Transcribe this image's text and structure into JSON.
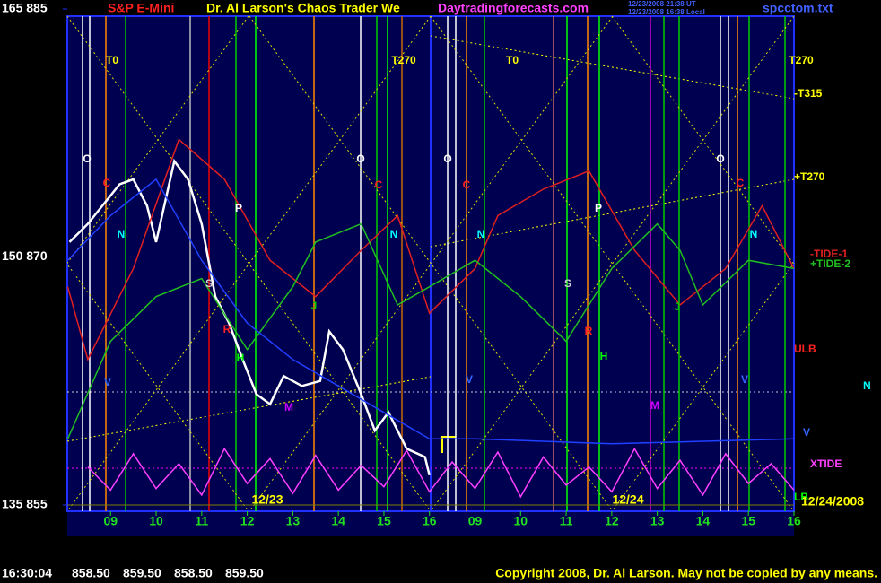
{
  "header": {
    "symbol": "S&P E-Mini",
    "title": "Dr. Al Larson's Chaos Trader We",
    "site": "Daytradingforecasts.com",
    "time_ut": "12/23/2008 21:38 UT",
    "time_local": "12/23/2008 16:38 Local",
    "file": "spcctom.txt"
  },
  "chart_data": {
    "type": "line",
    "xlim": [
      8.05,
      24
    ],
    "ylim": [
      855,
      885
    ],
    "yticks": [
      {
        "value": 885,
        "label": "165 885"
      },
      {
        "value": 870,
        "label": "150 870"
      },
      {
        "value": 855,
        "label": "135 855"
      }
    ],
    "xticks": [
      {
        "value": 9,
        "label": "09"
      },
      10,
      11,
      12,
      13,
      14,
      15,
      16,
      {
        "value": 17,
        "label": "09"
      },
      {
        "value": 18,
        "label": "10"
      },
      {
        "value": 19,
        "label": "11"
      },
      {
        "value": 20,
        "label": "12"
      },
      {
        "value": 21,
        "label": "13"
      },
      {
        "value": 22,
        "label": "14"
      },
      {
        "value": 23,
        "label": "15"
      },
      {
        "value": 24,
        "label": "16"
      }
    ],
    "series": [
      {
        "color": "#ffffff",
        "x": [
          8.1,
          8.5,
          9.2,
          9.5,
          9.8,
          10.0,
          10.4,
          10.7,
          11.0,
          11.3,
          11.6,
          11.9,
          12.2,
          12.5,
          12.8,
          13.2,
          13.6,
          13.8,
          14.1,
          14.5,
          14.8,
          15.1,
          15.5,
          15.9,
          16.0
        ],
        "values": [
          870.9,
          872.0,
          874.4,
          874.7,
          873.1,
          870.9,
          875.8,
          874.7,
          872.0,
          867.6,
          866.0,
          863.8,
          861.7,
          861.1,
          862.8,
          862.2,
          862.5,
          865.5,
          864.4,
          861.7,
          859.5,
          860.6,
          858.4,
          857.9,
          856.8
        ]
      },
      {
        "name": "-TIDE-1",
        "color": "#e02020",
        "x": [
          8.06,
          8.5,
          9.5,
          10.5,
          11.5,
          12.5,
          13.5,
          14.5,
          15.3,
          16,
          17,
          17.5,
          18.5,
          19.5,
          20.5,
          21.5,
          22.5,
          23.3,
          24
        ],
        "values": [
          868.2,
          863.8,
          869.3,
          877.1,
          874.7,
          869.8,
          867.6,
          870.4,
          872.5,
          866.6,
          869.3,
          872.5,
          874.1,
          875.2,
          870.4,
          867.1,
          869.3,
          873.1,
          869.3
        ]
      },
      {
        "name": "+TIDE-2",
        "color": "#20c020",
        "x": [
          8.06,
          9,
          10,
          11,
          12,
          13,
          13.5,
          14.5,
          15.3,
          16,
          17,
          18,
          19,
          20,
          21,
          21.5,
          22,
          23,
          24
        ],
        "values": [
          859.0,
          864.9,
          867.6,
          868.7,
          864.4,
          868.2,
          870.9,
          872.0,
          867.1,
          868.2,
          869.8,
          867.6,
          864.9,
          869.3,
          872.0,
          870.4,
          867.1,
          869.8,
          869.3
        ]
      },
      {
        "color": "#2040ff",
        "x": [
          8.06,
          9,
          10,
          11,
          12,
          13,
          14,
          15,
          16,
          17,
          20,
          24
        ],
        "values": [
          869.8,
          872.5,
          874.7,
          869.8,
          866.0,
          863.8,
          862.2,
          860.6,
          859.0,
          859.0,
          858.7,
          859.0
        ]
      },
      {
        "name": "XTIDE",
        "color": "#ff40ff",
        "x": [
          8.5,
          9,
          9.5,
          10,
          10.5,
          11,
          11.5,
          12,
          12.5,
          13,
          13.5,
          14,
          14.5,
          15,
          15.5,
          16,
          16.5,
          17,
          17.5,
          18,
          18.5,
          19,
          19.5,
          20,
          20.5,
          21,
          21.5,
          22,
          22.5,
          23,
          23.5,
          24
        ],
        "values": [
          857.3,
          855.9,
          858.1,
          856.0,
          857.5,
          855.6,
          858.4,
          856.3,
          857.8,
          855.7,
          858.0,
          855.9,
          857.4,
          856.1,
          858.3,
          855.8,
          857.6,
          856.0,
          858.2,
          855.5,
          857.9,
          856.2,
          857.3,
          855.8,
          858.4,
          856.0,
          857.7,
          855.6,
          858.1,
          856.3,
          857.5,
          855.9
        ]
      }
    ],
    "annotations": [
      "T0",
      "T270",
      "T0",
      "T270",
      "O",
      "O",
      "O",
      "O",
      "C",
      "C",
      "C",
      "C",
      "P",
      "P",
      "N",
      "N",
      "N",
      "N",
      "S",
      "S",
      "R",
      "R",
      "H",
      "H",
      "J",
      "J",
      "M",
      "M",
      "V",
      "V",
      "V"
    ],
    "right_labels": [
      "-T315",
      "+T270",
      "ULB",
      "N",
      "V",
      "LB"
    ],
    "date_labels": [
      "12/23",
      "12/24",
      "12/24/2008"
    ]
  },
  "footer": {
    "time": "16:30:04",
    "ohlc": [
      "858.50",
      "859.50",
      "858.50",
      "859.50"
    ],
    "copyright": "Copyright 2008, Dr. Al Larson. May not be copied by any means."
  }
}
